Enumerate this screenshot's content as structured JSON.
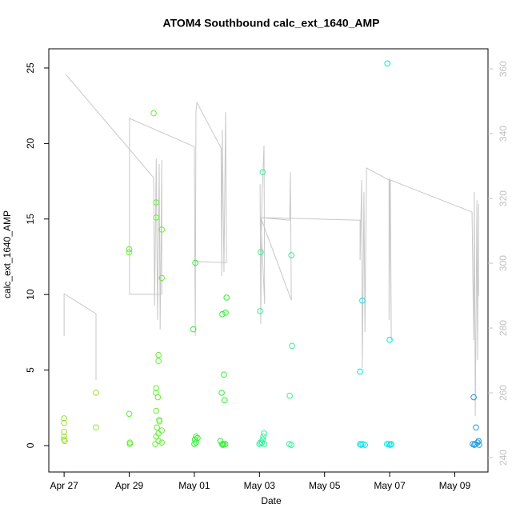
{
  "chart_data": {
    "type": "scatter",
    "title": "ATOM4 Southbound calc_ext_1640_AMP",
    "xlabel": "Date",
    "ylabel": "calc_ext_1640_AMP",
    "xlim": [
      -0.47,
      13.02
    ],
    "ylim": [
      -1.75,
      26.27
    ],
    "y2lim": [
      235.56,
      366.2
    ],
    "xticks": [
      {
        "value": 0,
        "label": "Apr 27"
      },
      {
        "value": 2,
        "label": "Apr 29"
      },
      {
        "value": 4,
        "label": "May 01"
      },
      {
        "value": 6,
        "label": "May 03"
      },
      {
        "value": 8,
        "label": "May 05"
      },
      {
        "value": 10,
        "label": "May 07"
      },
      {
        "value": 12,
        "label": "May 09"
      }
    ],
    "yticks": [
      0,
      5,
      10,
      15,
      20,
      25
    ],
    "y2ticks": [
      240,
      260,
      280,
      300,
      320,
      340,
      360
    ],
    "y2color": "#c0c0c0",
    "series": [
      {
        "type": "line",
        "axis": "y2",
        "color": "#c8c8c8",
        "x": [
          0,
          0,
          0.98,
          0.98,
          null,
          0.05,
          2.75,
          2.78,
          2.83,
          2.87,
          2.92,
          2.95,
          3.0,
          3.0,
          2.01,
          2.01,
          4.0,
          4.03,
          4.05,
          4.08,
          4.82,
          4.84,
          4.86,
          4.91,
          4.96,
          4.99,
          4.05,
          null,
          6.02,
          6.04,
          6.07,
          6.14,
          6.16,
          6.04,
          6.93,
          6.95,
          6.98,
          6.04,
          9.09,
          9.09,
          9.14,
          9.16,
          9.21,
          9.24,
          9.29,
          9.98,
          9.98,
          10.0,
          10.05,
          10.02,
          12.53,
          12.58,
          12.6,
          12.63,
          12.68,
          12.7,
          12.73,
          12.73
        ],
        "values": [
          277.5,
          290.6,
          284.4,
          264.0,
          null,
          358.3,
          326.4,
          286.9,
          332.3,
          282.5,
          330.6,
          279.5,
          331.9,
          290.4,
          290.4,
          344.7,
          336.0,
          277.5,
          346.7,
          349.6,
          335.6,
          296.0,
          341.2,
          297.3,
          346.7,
          300.2,
          300.5,
          null,
          324.4,
          281.2,
          318.3,
          336.3,
          287.4,
          314.1,
          313.3,
          328.1,
          288.6,
          314.1,
          313.3,
          301.0,
          325.7,
          267.7,
          322.0,
          278.8,
          329.4,
          325.7,
          282.5,
          326.4,
          276.3,
          325.7,
          315.8,
          276.3,
          322.0,
          252.8,
          319.5,
          270.1,
          318.3,
          289.9
        ]
      },
      {
        "color": "#99e033",
        "x": [
          0,
          0,
          0,
          0,
          0,
          0.02,
          0.98,
          0.98
        ],
        "values": [
          1.8,
          1.5,
          0.9,
          0.6,
          0.4,
          0.3,
          3.5,
          1.2
        ]
      },
      {
        "color": "#66ee33",
        "x": [
          2.0,
          2.0,
          2.0,
          2.02,
          2.02,
          2.75,
          2.83,
          2.83,
          2.83,
          2.82,
          2.83,
          2.85,
          2.83,
          2.8,
          2.9,
          2.9,
          2.88,
          2.92,
          2.93,
          2.9,
          2.9,
          3.0,
          3.0,
          3.0,
          3.0
        ],
        "values": [
          13.0,
          12.8,
          2.1,
          0.2,
          0.1,
          22.0,
          16.1,
          15.1,
          3.8,
          3.5,
          2.3,
          1.2,
          0.6,
          0.1,
          6.0,
          5.6,
          3.2,
          1.7,
          1.6,
          0.8,
          0.3,
          14.3,
          11.1,
          1.0,
          0.2
        ]
      },
      {
        "color": "#33ee33",
        "x": [
          3.97,
          4.03,
          4.05,
          4.1,
          4.02,
          4.05,
          4.0,
          4.84,
          4.86,
          4.8,
          4.85,
          4.91,
          4.93,
          4.96,
          4.9,
          4.88,
          4.99,
          4.95
        ],
        "values": [
          7.7,
          12.1,
          0.6,
          0.5,
          0.4,
          0.2,
          0.1,
          3.5,
          8.7,
          0.3,
          0.1,
          4.7,
          3.0,
          8.8,
          0.1,
          0.05,
          9.8,
          0.1
        ]
      },
      {
        "color": "#33ee99",
        "x": [
          6.02,
          6.04,
          6.0,
          6.03,
          6.1,
          6.14,
          6.12,
          6.1,
          6.08,
          6.15,
          6.93,
          6.92,
          6.98,
          7.0,
          6.98
        ],
        "values": [
          8.9,
          12.8,
          0.1,
          0.2,
          18.1,
          0.8,
          0.6,
          0.4,
          0.2,
          0.1,
          3.3,
          0.1,
          12.6,
          6.6,
          0.05
        ]
      },
      {
        "color": "#00e6e6",
        "x": [
          9.09,
          9.09,
          9.12,
          9.16,
          9.17,
          9.24,
          9.93,
          9.92,
          10.0,
          9.98,
          10.02,
          10.05
        ],
        "values": [
          4.9,
          0.1,
          0.05,
          9.6,
          0.1,
          0.05,
          25.3,
          0.1,
          7.0,
          0.1,
          0.05,
          0.1
        ]
      },
      {
        "color": "#1a99e6",
        "x": [
          12.58,
          12.55,
          12.6,
          12.65,
          12.63,
          12.73,
          12.7,
          12.75
        ],
        "values": [
          3.2,
          0.1,
          0.05,
          1.2,
          0.1,
          0.3,
          0.2,
          0.05
        ]
      }
    ]
  }
}
